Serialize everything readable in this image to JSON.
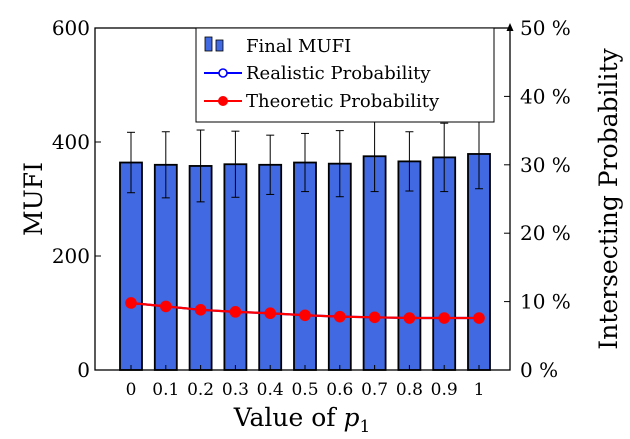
{
  "chart_data": {
    "type": "bar",
    "categories": [
      "0",
      "0.1",
      "0.2",
      "0.3",
      "0.4",
      "0.5",
      "0.6",
      "0.7",
      "0.8",
      "0.9",
      "1"
    ],
    "xlabel_prefix": "Value of ",
    "xlabel_var": "p",
    "xlabel_sub": "1",
    "ylabel": "MUFI",
    "ylabel_right": "Intersecting Probability",
    "ylim": [
      0,
      600
    ],
    "ylim_right": [
      0,
      50
    ],
    "yticks": [
      "0",
      "200",
      "400",
      "600"
    ],
    "yticks_right": [
      "0 %",
      "10 %",
      "20 %",
      "30 %",
      "40 %",
      "50 %"
    ],
    "series": [
      {
        "name": "Final MUFI",
        "kind": "bar",
        "axis": "left",
        "color": "#4169e1",
        "values": [
          364,
          360,
          358,
          361,
          360,
          364,
          362,
          375,
          366,
          373,
          379
        ],
        "errors": [
          53,
          58,
          63,
          58,
          52,
          51,
          58,
          62,
          52,
          60,
          61
        ]
      },
      {
        "name": "Realistic Probability",
        "kind": "line",
        "axis": "right",
        "color": "#0000ff",
        "values": [
          9.8,
          9.3,
          8.8,
          8.5,
          8.3,
          8.0,
          7.8,
          7.7,
          7.6,
          7.6,
          7.6
        ]
      },
      {
        "name": "Theoretic Probability",
        "kind": "line",
        "axis": "right",
        "color": "#ff0000",
        "values": [
          9.8,
          9.3,
          8.8,
          8.5,
          8.3,
          8.0,
          7.8,
          7.7,
          7.6,
          7.6,
          7.6
        ]
      }
    ],
    "legend_position": "top-right"
  }
}
